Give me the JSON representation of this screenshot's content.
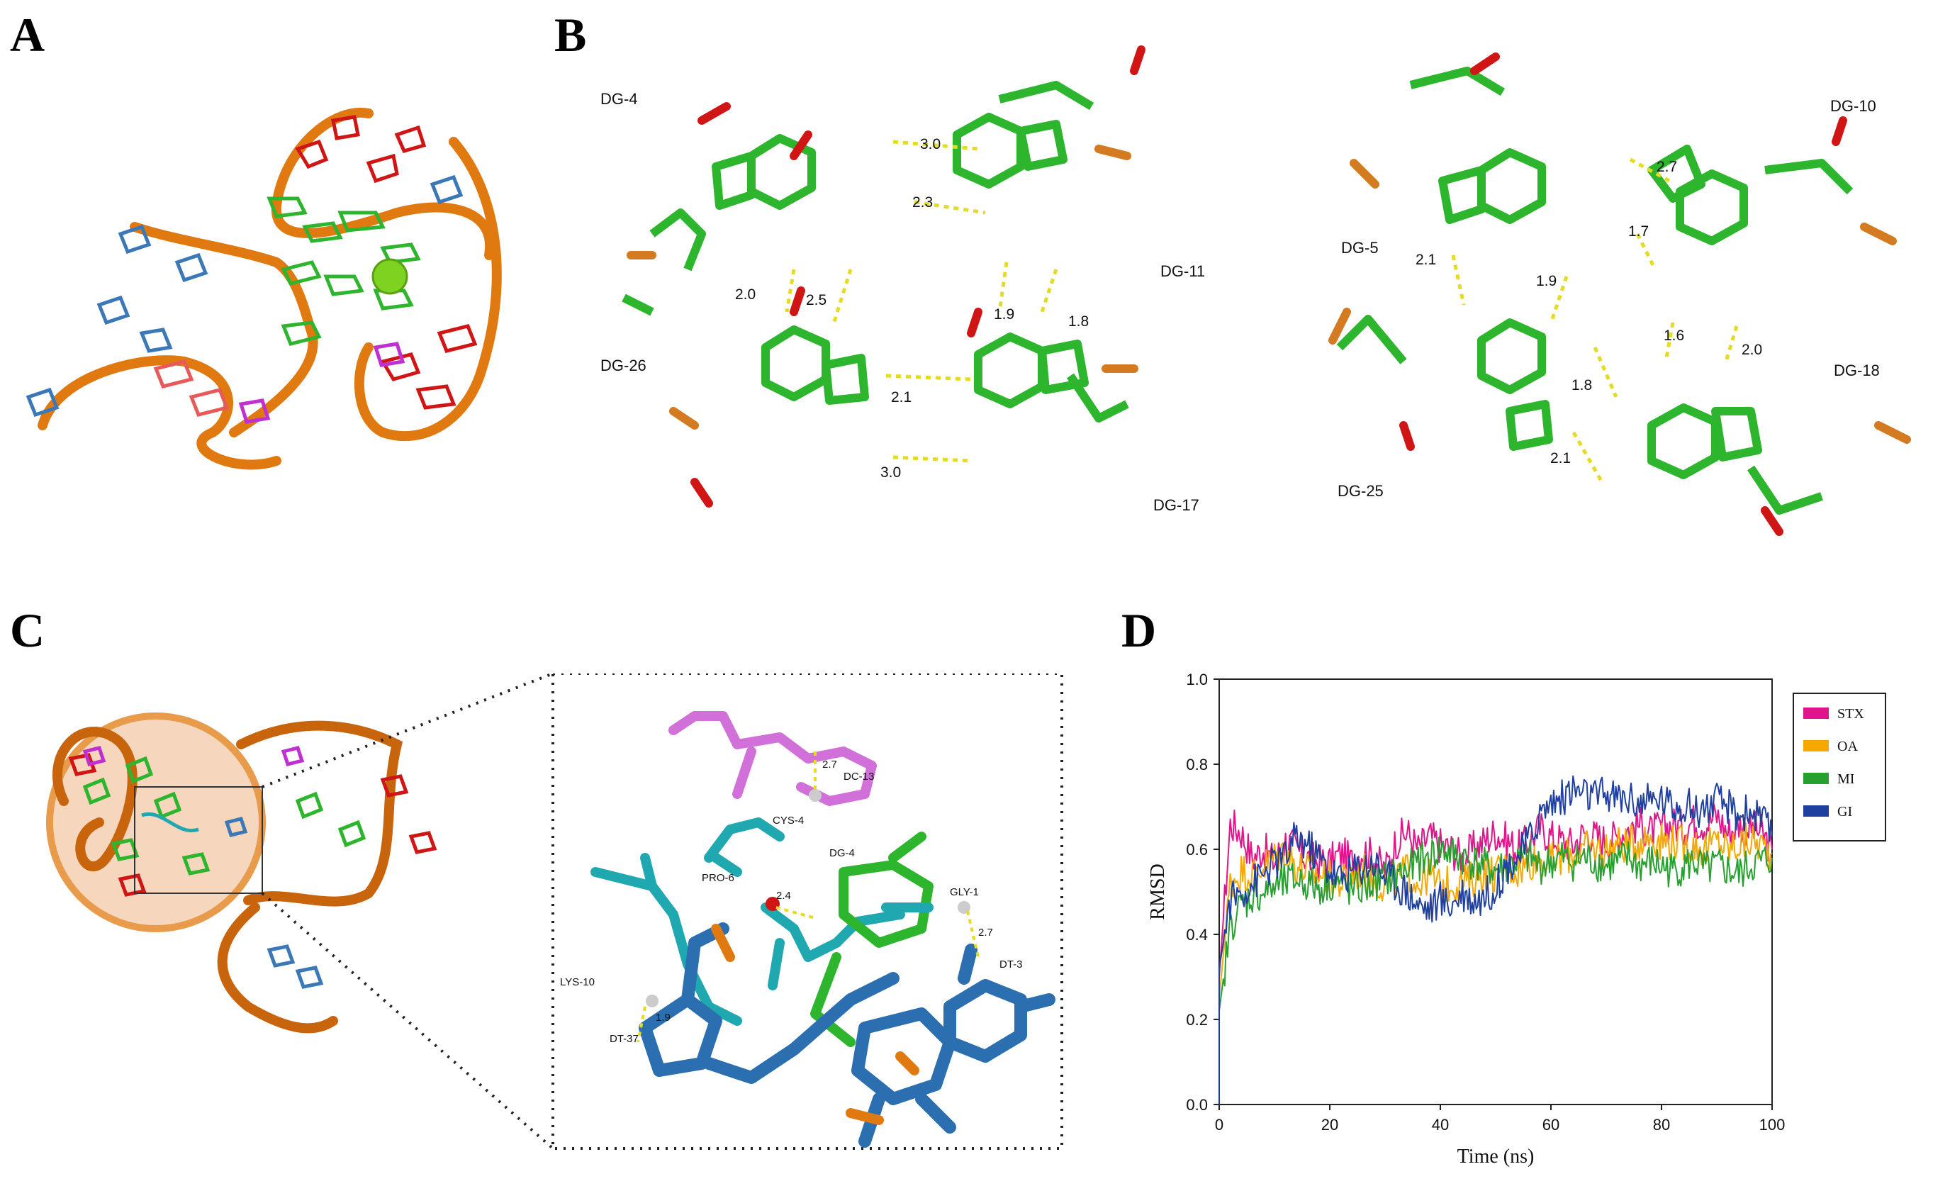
{
  "panels": {
    "a": "A",
    "b": "B",
    "c": "C",
    "d": "D"
  },
  "panel_b": {
    "left_labels": [
      "DG-4",
      "DG-11",
      "DG-26",
      "DG-17"
    ],
    "left_distances": [
      "3.0",
      "2.3",
      "2.0",
      "2.5",
      "1.9",
      "1.8",
      "2.1",
      "3.0"
    ],
    "right_labels": [
      "DG-10",
      "DG-5",
      "DG-18",
      "DG-25"
    ],
    "right_distances": [
      "2.7",
      "1.7",
      "2.1",
      "1.9",
      "1.6",
      "2.0",
      "1.8",
      "2.1"
    ]
  },
  "panel_c": {
    "residues": [
      "DC-13",
      "CYS-4",
      "PRO-6",
      "DG-4",
      "GLY-1",
      "DT-3",
      "LYS-10",
      "DT-37"
    ],
    "distances": [
      "2.7",
      "2.4",
      "2.7",
      "1.9"
    ]
  },
  "colors": {
    "backbone": "#e07a10",
    "guanine": "#2db52d",
    "red": "#d01515",
    "blue": "#3a78b8",
    "magenta": "#c030d0",
    "cyan": "#20a8b0",
    "stx": "#e0158a",
    "oa": "#f5a800",
    "mi": "#27a02f",
    "gi": "#2040a0"
  },
  "chart_data": {
    "type": "line",
    "xlabel": "Time (ns)",
    "ylabel": "RMSD",
    "xlim": [
      0,
      100
    ],
    "ylim": [
      0,
      1.0
    ],
    "xticks": [
      "0",
      "20",
      "40",
      "60",
      "80",
      "100"
    ],
    "yticks": [
      "0.0",
      "0.2",
      "0.4",
      "0.6",
      "0.8",
      "1.0"
    ],
    "legend_position": "right",
    "x": [
      0,
      2,
      4,
      6,
      8,
      10,
      12,
      14,
      16,
      18,
      20,
      22,
      24,
      26,
      28,
      30,
      32,
      34,
      36,
      38,
      40,
      42,
      44,
      46,
      48,
      50,
      52,
      54,
      56,
      58,
      60,
      62,
      64,
      66,
      68,
      70,
      72,
      74,
      76,
      78,
      80,
      82,
      84,
      86,
      88,
      90,
      92,
      94,
      96,
      98,
      100
    ],
    "series": [
      {
        "name": "STX",
        "color": "#e0158a",
        "values": [
          0.3,
          0.66,
          0.64,
          0.58,
          0.6,
          0.57,
          0.62,
          0.6,
          0.58,
          0.57,
          0.57,
          0.59,
          0.57,
          0.6,
          0.58,
          0.55,
          0.62,
          0.64,
          0.6,
          0.63,
          0.61,
          0.6,
          0.58,
          0.6,
          0.62,
          0.64,
          0.62,
          0.6,
          0.62,
          0.65,
          0.63,
          0.62,
          0.61,
          0.64,
          0.63,
          0.62,
          0.63,
          0.65,
          0.66,
          0.64,
          0.65,
          0.66,
          0.65,
          0.67,
          0.66,
          0.68,
          0.64,
          0.66,
          0.65,
          0.64,
          0.6
        ]
      },
      {
        "name": "OA",
        "color": "#f5a800",
        "values": [
          0.25,
          0.52,
          0.55,
          0.54,
          0.56,
          0.58,
          0.6,
          0.56,
          0.55,
          0.54,
          0.53,
          0.52,
          0.54,
          0.55,
          0.52,
          0.52,
          0.53,
          0.55,
          0.52,
          0.54,
          0.51,
          0.52,
          0.52,
          0.53,
          0.55,
          0.54,
          0.56,
          0.55,
          0.57,
          0.58,
          0.57,
          0.58,
          0.59,
          0.6,
          0.6,
          0.6,
          0.61,
          0.61,
          0.62,
          0.63,
          0.62,
          0.62,
          0.61,
          0.61,
          0.6,
          0.62,
          0.6,
          0.61,
          0.62,
          0.61,
          0.59
        ]
      },
      {
        "name": "MI",
        "color": "#27a02f",
        "values": [
          0.22,
          0.42,
          0.47,
          0.49,
          0.5,
          0.51,
          0.52,
          0.53,
          0.52,
          0.51,
          0.52,
          0.52,
          0.5,
          0.51,
          0.52,
          0.53,
          0.54,
          0.55,
          0.57,
          0.58,
          0.6,
          0.59,
          0.58,
          0.57,
          0.56,
          0.55,
          0.56,
          0.57,
          0.58,
          0.56,
          0.57,
          0.58,
          0.57,
          0.58,
          0.57,
          0.56,
          0.57,
          0.58,
          0.56,
          0.57,
          0.56,
          0.55,
          0.56,
          0.57,
          0.55,
          0.56,
          0.55,
          0.54,
          0.56,
          0.57,
          0.58
        ]
      },
      {
        "name": "GI",
        "color": "#2040a0",
        "values": [
          0.32,
          0.48,
          0.5,
          0.52,
          0.54,
          0.57,
          0.58,
          0.63,
          0.61,
          0.58,
          0.55,
          0.53,
          0.55,
          0.56,
          0.57,
          0.54,
          0.52,
          0.5,
          0.47,
          0.46,
          0.48,
          0.47,
          0.5,
          0.48,
          0.49,
          0.51,
          0.56,
          0.58,
          0.62,
          0.68,
          0.71,
          0.72,
          0.74,
          0.73,
          0.72,
          0.73,
          0.72,
          0.72,
          0.71,
          0.71,
          0.72,
          0.7,
          0.71,
          0.69,
          0.7,
          0.71,
          0.7,
          0.68,
          0.69,
          0.67,
          0.63
        ]
      }
    ]
  }
}
